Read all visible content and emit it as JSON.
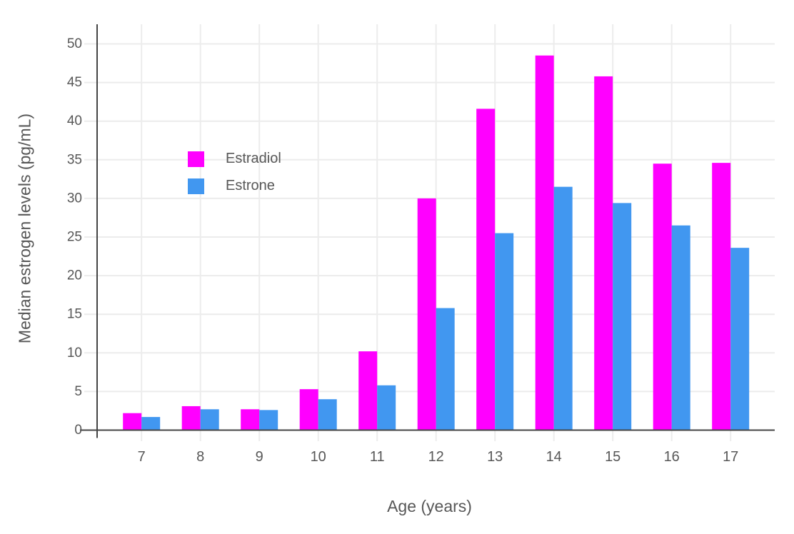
{
  "chart_data": {
    "type": "bar",
    "title": "",
    "xlabel": "Age (years)",
    "ylabel": "Median estrogen levels (pg/mL)",
    "categories": [
      "7",
      "8",
      "9",
      "10",
      "11",
      "12",
      "13",
      "14",
      "15",
      "16",
      "17"
    ],
    "series": [
      {
        "name": "Estradiol",
        "color": "#FF00FF",
        "values": [
          2.2,
          3.1,
          2.7,
          5.3,
          10.2,
          30,
          41.6,
          48.5,
          45.8,
          34.5,
          34.6
        ]
      },
      {
        "name": "Estrone",
        "color": "#4197F0",
        "values": [
          1.7,
          2.7,
          2.6,
          4,
          5.8,
          15.8,
          25.5,
          31.5,
          29.4,
          26.5,
          23.6
        ]
      }
    ],
    "ylim": [
      0,
      50
    ],
    "ytick_step": 5,
    "grid": true,
    "legend_position": "inside-top-left",
    "colors": {
      "background": "#FFFFFF",
      "gridline": "#ECECEC",
      "axis_line": "#444444",
      "tick_label": "#575757",
      "axis_title": "#575757",
      "legend_text": "#575757"
    }
  }
}
